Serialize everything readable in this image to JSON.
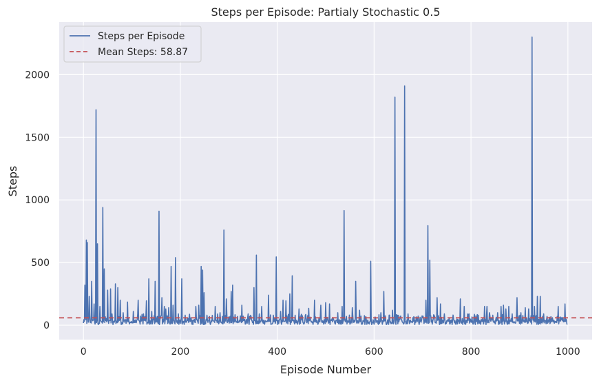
{
  "chart_data": {
    "type": "line",
    "title": "Steps per Episode: Partialy Stochastic 0.5",
    "xlabel": "Episode Number",
    "ylabel": "Steps",
    "xlim": [
      -50,
      1050
    ],
    "ylim": [
      -115,
      2420
    ],
    "xticks": [
      0,
      200,
      400,
      600,
      800,
      1000
    ],
    "yticks": [
      0,
      500,
      1000,
      1500,
      2000
    ],
    "grid": true,
    "legend_position": "top-left",
    "series": [
      {
        "name": "Steps per Episode",
        "color": "#4c72b0",
        "peaks": [
          [
            3,
            320
          ],
          [
            6,
            680
          ],
          [
            8,
            660
          ],
          [
            12,
            230
          ],
          [
            17,
            350
          ],
          [
            22,
            170
          ],
          [
            26,
            1720
          ],
          [
            29,
            650
          ],
          [
            34,
            150
          ],
          [
            40,
            940
          ],
          [
            43,
            450
          ],
          [
            50,
            280
          ],
          [
            56,
            290
          ],
          [
            66,
            330
          ],
          [
            71,
            300
          ],
          [
            76,
            200
          ],
          [
            82,
            100
          ],
          [
            91,
            185
          ],
          [
            103,
            110
          ],
          [
            113,
            200
          ],
          [
            124,
            90
          ],
          [
            130,
            195
          ],
          [
            135,
            370
          ],
          [
            141,
            110
          ],
          [
            148,
            350
          ],
          [
            156,
            910
          ],
          [
            162,
            220
          ],
          [
            167,
            150
          ],
          [
            170,
            130
          ],
          [
            176,
            140
          ],
          [
            181,
            470
          ],
          [
            185,
            160
          ],
          [
            190,
            540
          ],
          [
            196,
            90
          ],
          [
            203,
            370
          ],
          [
            210,
            80
          ],
          [
            222,
            60
          ],
          [
            232,
            150
          ],
          [
            238,
            160
          ],
          [
            243,
            470
          ],
          [
            246,
            440
          ],
          [
            249,
            260
          ],
          [
            255,
            80
          ],
          [
            260,
            70
          ],
          [
            272,
            150
          ],
          [
            282,
            100
          ],
          [
            290,
            760
          ],
          [
            295,
            210
          ],
          [
            305,
            270
          ],
          [
            308,
            320
          ],
          [
            318,
            70
          ],
          [
            327,
            160
          ],
          [
            340,
            90
          ],
          [
            352,
            300
          ],
          [
            357,
            560
          ],
          [
            363,
            90
          ],
          [
            368,
            150
          ],
          [
            382,
            240
          ],
          [
            392,
            80
          ],
          [
            398,
            545
          ],
          [
            407,
            110
          ],
          [
            412,
            200
          ],
          [
            418,
            195
          ],
          [
            426,
            250
          ],
          [
            431,
            395
          ],
          [
            437,
            80
          ],
          [
            445,
            130
          ],
          [
            458,
            80
          ],
          [
            465,
            135
          ],
          [
            477,
            200
          ],
          [
            490,
            160
          ],
          [
            500,
            180
          ],
          [
            508,
            170
          ],
          [
            525,
            100
          ],
          [
            534,
            150
          ],
          [
            538,
            915
          ],
          [
            543,
            70
          ],
          [
            555,
            140
          ],
          [
            562,
            350
          ],
          [
            570,
            120
          ],
          [
            582,
            60
          ],
          [
            593,
            510
          ],
          [
            603,
            60
          ],
          [
            614,
            100
          ],
          [
            620,
            270
          ],
          [
            632,
            80
          ],
          [
            638,
            120
          ],
          [
            643,
            1820
          ],
          [
            648,
            80
          ],
          [
            663,
            1910
          ],
          [
            670,
            90
          ],
          [
            680,
            60
          ],
          [
            690,
            50
          ],
          [
            700,
            60
          ],
          [
            707,
            200
          ],
          [
            711,
            795
          ],
          [
            715,
            520
          ],
          [
            722,
            50
          ],
          [
            730,
            220
          ],
          [
            737,
            170
          ],
          [
            745,
            90
          ],
          [
            755,
            60
          ],
          [
            764,
            50
          ],
          [
            778,
            210
          ],
          [
            786,
            150
          ],
          [
            796,
            90
          ],
          [
            806,
            60
          ],
          [
            815,
            80
          ],
          [
            828,
            150
          ],
          [
            833,
            150
          ],
          [
            838,
            100
          ],
          [
            845,
            80
          ],
          [
            855,
            100
          ],
          [
            862,
            150
          ],
          [
            867,
            160
          ],
          [
            872,
            130
          ],
          [
            878,
            150
          ],
          [
            885,
            90
          ],
          [
            895,
            220
          ],
          [
            903,
            100
          ],
          [
            912,
            140
          ],
          [
            919,
            130
          ],
          [
            926,
            2300
          ],
          [
            931,
            150
          ],
          [
            937,
            230
          ],
          [
            943,
            230
          ],
          [
            950,
            90
          ],
          [
            957,
            70
          ],
          [
            968,
            60
          ],
          [
            980,
            150
          ],
          [
            986,
            60
          ],
          [
            990,
            60
          ],
          [
            994,
            170
          ]
        ]
      },
      {
        "name": "Mean Steps: 58.87",
        "color": "#c44e52",
        "value": 58.87,
        "style": "dashed"
      }
    ]
  }
}
